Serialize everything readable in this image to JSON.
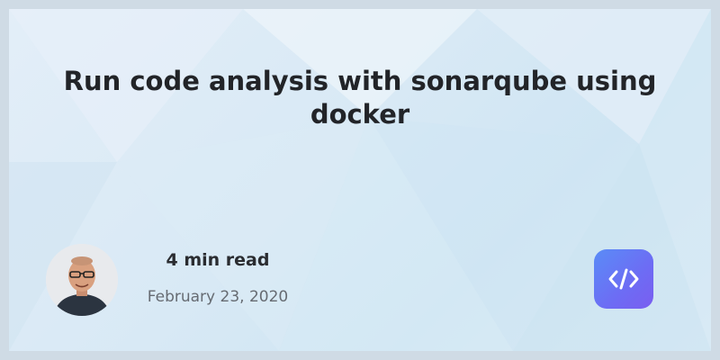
{
  "post": {
    "title": "Run code analysis with sonarqube using docker",
    "read_time": "4 min read",
    "date": "February 23, 2020"
  },
  "icons": {
    "author": "author-avatar",
    "logo": "code-icon"
  },
  "colors": {
    "background": "#d8e9f5",
    "border": "#cfdbe5",
    "title": "#222428",
    "date": "#666b72",
    "logo_start": "#5a8cf7",
    "logo_end": "#7a5ef0"
  }
}
